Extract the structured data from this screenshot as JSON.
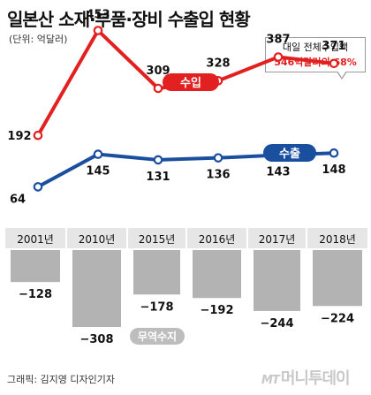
{
  "title": "일본산 소재·부품·장비 수출입 현황",
  "unit": "(단위: 억달러)",
  "callout": {
    "line1": "대일 전체수입액",
    "line2_value": "546억달러의 68%"
  },
  "credit": "그래픽: 김지영 디자인기자",
  "logo": {
    "mark": "MT",
    "name": "머니투데이"
  },
  "colors": {
    "import": "#e32020",
    "export": "#1a4fa0",
    "balance_bar": "#b3b3b3",
    "balance_label_bg": "#bdbdbd",
    "year_band": "#e6e6e6"
  },
  "chart_data": {
    "type": "line",
    "categories": [
      "2001년",
      "2010년",
      "2015년",
      "2016년",
      "2017년",
      "2018년"
    ],
    "series": [
      {
        "name": "수입",
        "values": [
          192,
          453,
          309,
          328,
          387,
          371
        ]
      },
      {
        "name": "수출",
        "values": [
          64,
          145,
          131,
          136,
          143,
          148
        ]
      }
    ],
    "balance": {
      "name": "무역수지",
      "type": "bar",
      "values": [
        -128,
        -308,
        -178,
        -192,
        -244,
        -224
      ]
    },
    "labels": {
      "import": [
        "192",
        "453",
        "309",
        "328",
        "387",
        "371"
      ],
      "export": [
        "64",
        "145",
        "131",
        "136",
        "143",
        "148"
      ],
      "balance": [
        "−128",
        "−308",
        "−178",
        "−192",
        "−244",
        "−224"
      ]
    }
  }
}
